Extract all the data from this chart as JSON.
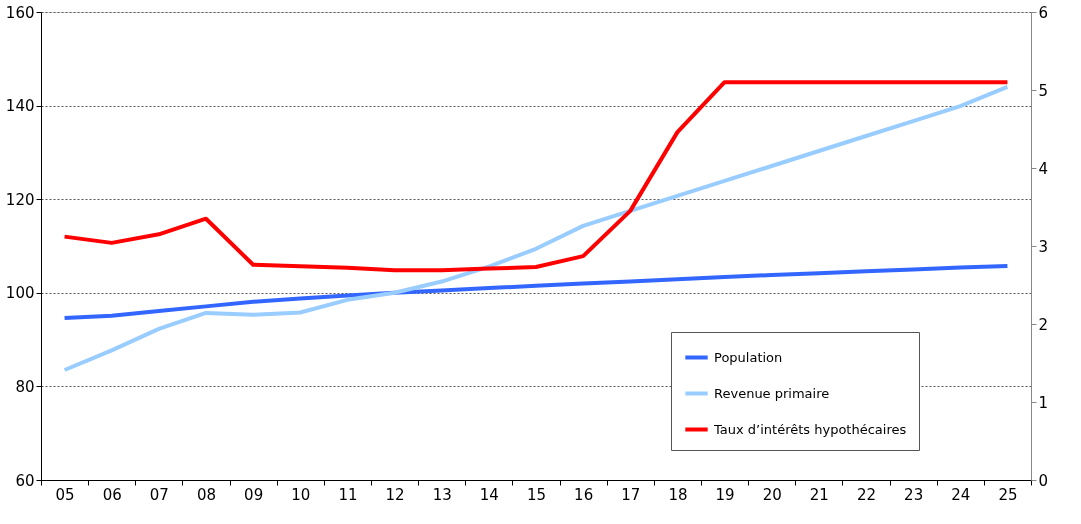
{
  "chart_data": {
    "type": "line",
    "categories": [
      "05",
      "06",
      "07",
      "08",
      "09",
      "10",
      "11",
      "12",
      "13",
      "14",
      "15",
      "16",
      "17",
      "18",
      "19",
      "20",
      "21",
      "22",
      "23",
      "24",
      "25"
    ],
    "series": [
      {
        "name": "Population",
        "color": "#3366ff",
        "values": [
          94.6,
          95.1,
          96.1,
          97.1,
          98.1,
          98.8,
          99.4,
          100,
          100.5,
          101,
          101.5,
          102,
          102.4,
          102.9,
          103.4,
          103.8,
          104.2,
          104.6,
          105,
          105.4,
          105.7
        ]
      },
      {
        "name": "Revenue primaire",
        "color": "#99ccff",
        "values": [
          83.5,
          87.7,
          92.3,
          95.7,
          95.3,
          95.8,
          98.5,
          100,
          102.4,
          105.6,
          109.4,
          114.3,
          117.5,
          120.7,
          123.9,
          127.1,
          130.3,
          133.5,
          136.7,
          139.9,
          144
        ]
      },
      {
        "name": "Taux d’intérêts hypothécaires",
        "color": "#ff0000",
        "axis": "y2",
        "values": [
          3.12,
          3.04,
          3.15,
          3.35,
          2.76,
          2.74,
          2.72,
          2.69,
          2.69,
          2.71,
          2.73,
          2.87,
          3.45,
          4.46,
          5.1,
          5.1,
          5.1,
          5.1,
          5.1,
          5.1,
          5.1
        ]
      }
    ],
    "ylim": [
      60,
      160
    ],
    "yticks": [
      60,
      80,
      100,
      120,
      140,
      160
    ],
    "y2lim": [
      0,
      6
    ],
    "y2ticks": [
      0,
      1,
      2,
      3,
      4,
      5,
      6
    ],
    "grid": "y",
    "legend": "bottom right",
    "marker": "none",
    "line_style": "solid"
  }
}
